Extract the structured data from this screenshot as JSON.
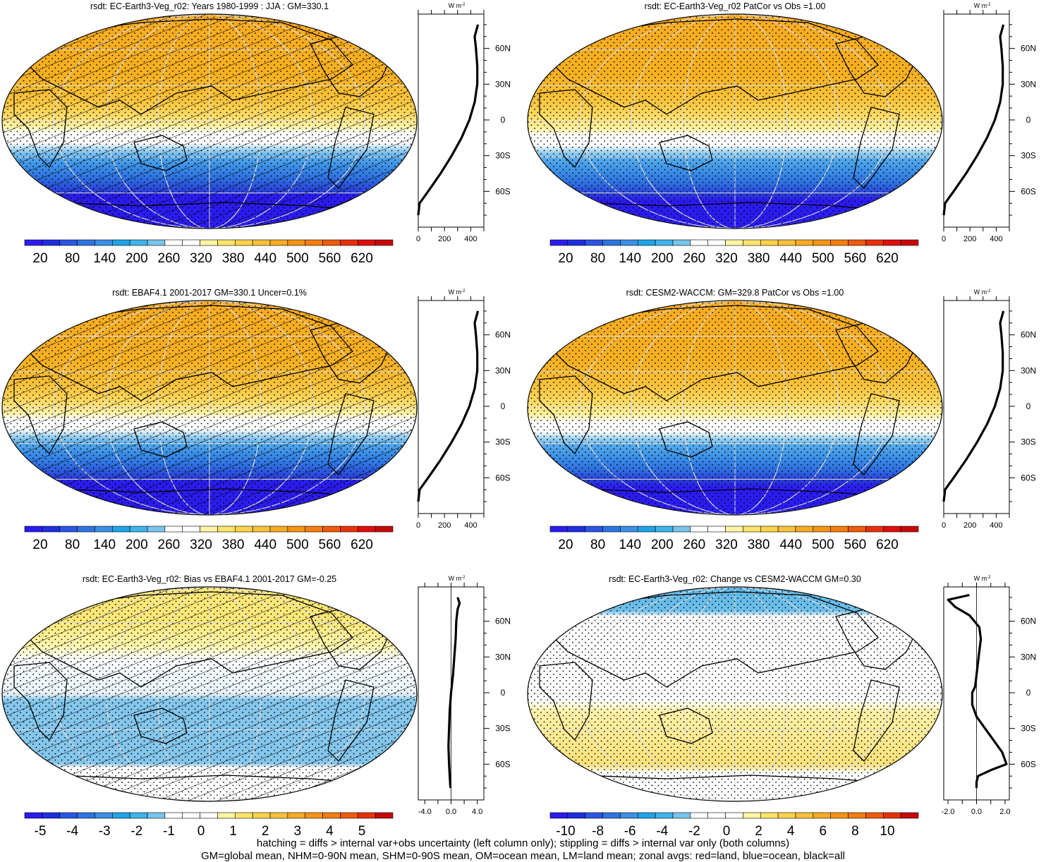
{
  "chart_data": [
    {
      "type": "heatmap",
      "title": "rsdt: EC-Earth3-Veg_r02: Years 1980-1999 : JJA : GM=330.1",
      "colorbar": "abs",
      "colorbar_ticks": [
        "20",
        "80",
        "140",
        "200",
        "260",
        "320",
        "380",
        "440",
        "500",
        "560",
        "620"
      ],
      "zonal_x_ticks": [
        "0",
        "200",
        "400"
      ],
      "zonal_unit": "W m",
      "lat_ticks": [
        "60N",
        "30N",
        "0",
        "30S",
        "60S"
      ],
      "zonal_profile": {
        "lat": [
          80,
          70,
          60,
          45,
          30,
          15,
          0,
          -15,
          -30,
          -45,
          -60,
          -70,
          -80
        ],
        "values": [
          455,
          430,
          440,
          450,
          450,
          430,
          390,
          330,
          255,
          170,
          75,
          10,
          0
        ]
      },
      "hatching": true,
      "stippling": true
    },
    {
      "type": "heatmap",
      "title": "rsdt: EC-Earth3-Veg_r02 PatCor vs Obs =1.00",
      "colorbar": "abs",
      "colorbar_ticks": [
        "20",
        "80",
        "140",
        "200",
        "260",
        "320",
        "380",
        "440",
        "500",
        "560",
        "620"
      ],
      "zonal_x_ticks": [
        "0",
        "200",
        "400"
      ],
      "zonal_unit": "W m",
      "lat_ticks": [
        "60N",
        "30N",
        "0",
        "30S",
        "60S"
      ],
      "zonal_profile": {
        "lat": [
          80,
          70,
          60,
          45,
          30,
          15,
          0,
          -15,
          -30,
          -45,
          -60,
          -70,
          -80
        ],
        "values": [
          455,
          430,
          440,
          450,
          450,
          430,
          390,
          330,
          255,
          170,
          75,
          10,
          0
        ]
      },
      "hatching": false,
      "stippling": true
    },
    {
      "type": "heatmap",
      "title": "rsdt: EBAF4.1 2001-2017 GM=330.1 Uncer=0.1%",
      "colorbar": "abs",
      "colorbar_ticks": [
        "20",
        "80",
        "140",
        "200",
        "260",
        "320",
        "380",
        "440",
        "500",
        "560",
        "620"
      ],
      "zonal_x_ticks": [
        "0",
        "200",
        "400"
      ],
      "zonal_unit": "W m",
      "lat_ticks": [
        "60N",
        "30N",
        "0",
        "30S",
        "60S"
      ],
      "zonal_profile": {
        "lat": [
          80,
          70,
          60,
          45,
          30,
          15,
          0,
          -15,
          -30,
          -45,
          -60,
          -70,
          -80
        ],
        "values": [
          455,
          430,
          440,
          450,
          450,
          430,
          390,
          330,
          255,
          170,
          75,
          10,
          0
        ]
      },
      "hatching": true,
      "stippling": true
    },
    {
      "type": "heatmap",
      "title": "rsdt: CESM2-WACCM: GM=329.8 PatCor vs Obs =1.00",
      "colorbar": "abs",
      "colorbar_ticks": [
        "20",
        "80",
        "140",
        "200",
        "260",
        "320",
        "380",
        "440",
        "500",
        "560",
        "620"
      ],
      "zonal_x_ticks": [
        "0",
        "200",
        "400"
      ],
      "zonal_unit": "W m",
      "lat_ticks": [
        "60N",
        "30N",
        "0",
        "30S",
        "60S"
      ],
      "zonal_profile": {
        "lat": [
          80,
          70,
          60,
          45,
          30,
          15,
          0,
          -15,
          -30,
          -45,
          -60,
          -70,
          -80
        ],
        "values": [
          455,
          430,
          440,
          450,
          450,
          430,
          390,
          330,
          255,
          170,
          75,
          10,
          0
        ]
      },
      "hatching": false,
      "stippling": true
    },
    {
      "type": "heatmap",
      "title": "rsdt: EC-Earth3-Veg_r02: Bias vs EBAF4.1 2001-2017 GM=-0.25",
      "colorbar": "bias",
      "colorbar_ticks": [
        "-5",
        "-4",
        "-3",
        "-2",
        "-1",
        "0",
        "1",
        "2",
        "3",
        "4",
        "5"
      ],
      "zonal_x_ticks": [
        "-4.0",
        "0.0",
        "4.0"
      ],
      "zonal_unit": "W m",
      "lat_ticks": [
        "60N",
        "30N",
        "0",
        "30S",
        "60S"
      ],
      "zonal_profile": {
        "lat": [
          80,
          75,
          70,
          60,
          45,
          30,
          15,
          0,
          -15,
          -30,
          -45,
          -60,
          -70,
          -80
        ],
        "values": [
          1.0,
          1.3,
          1.0,
          0.8,
          0.7,
          0.5,
          0.3,
          0.0,
          -0.2,
          -0.3,
          -0.4,
          -0.3,
          -0.2,
          -0.1
        ]
      },
      "hatching": true,
      "stippling": true
    },
    {
      "type": "heatmap",
      "title": "rsdt: EC-Earth3-Veg_r02: Change vs CESM2-WACCM GM=0.30",
      "colorbar": "change",
      "colorbar_ticks": [
        "-10",
        "-8",
        "-6",
        "-4",
        "-2",
        "0",
        "2",
        "4",
        "6",
        "8",
        "10"
      ],
      "zonal_x_ticks": [
        "-2.0",
        "0.0",
        "2.0"
      ],
      "zonal_unit": "W m",
      "lat_ticks": [
        "60N",
        "30N",
        "0",
        "30S",
        "60S"
      ],
      "zonal_profile": {
        "lat": [
          82,
          78,
          72,
          65,
          55,
          45,
          35,
          25,
          15,
          5,
          0,
          -10,
          -20,
          -30,
          -40,
          -50,
          -60,
          -65,
          -70,
          -75,
          -80
        ],
        "values": [
          -0.5,
          -2.0,
          -1.5,
          -0.5,
          0.2,
          0.3,
          0.2,
          0.1,
          0.0,
          -0.1,
          -0.3,
          -0.3,
          0.0,
          0.6,
          1.2,
          1.8,
          2.1,
          1.0,
          0.1,
          0.0,
          0.0
        ]
      },
      "hatching": false,
      "stippling": true
    }
  ],
  "colors": {
    "scale": [
      "#2a1cf0",
      "#1e2ee0",
      "#2b55e6",
      "#2e74e0",
      "#3b8fe6",
      "#1fa4e8",
      "#3fb3ea",
      "#78c4ea",
      "#ffffff",
      "#ffffff",
      "#fff5a3",
      "#fde46a",
      "#fbd34a",
      "#f8c13a",
      "#f7ab22",
      "#f69414",
      "#f47e0f",
      "#ef5a0c",
      "#e8300a",
      "#e00c0a",
      "#c80808"
    ],
    "bias_scale": [
      "#2a1cf0",
      "#1e2ee0",
      "#2b55e6",
      "#2e74e0",
      "#3b8fe6",
      "#1fa4e8",
      "#3fb3ea",
      "#78c4ea",
      "#ffffff",
      "#ffffff",
      "#ffffff",
      "#fff5a3",
      "#fde46a",
      "#fbd34a",
      "#f8c13a",
      "#f7ab22",
      "#f69414",
      "#f47e0f",
      "#ef5a0c",
      "#e8300a",
      "#c80808"
    ]
  },
  "footer": {
    "line1": "hatching = diffs > internal var+obs uncertainty (left column only); stippling = diffs > internal var only (both columns)",
    "line2": "GM=global mean, NHM=0-90N mean, SHM=0-90S mean, OM=ocean mean, LM=land mean; zonal avgs: red=land, blue=ocean, black=all"
  }
}
